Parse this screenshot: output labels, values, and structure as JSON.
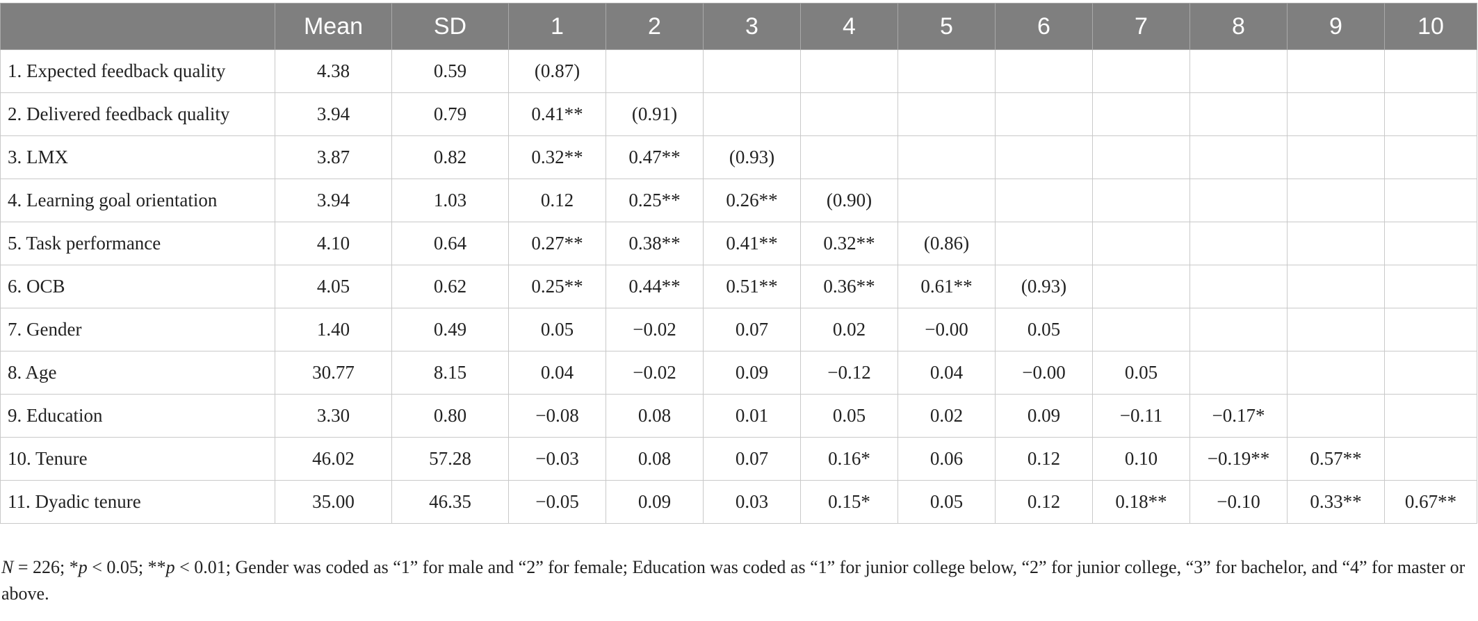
{
  "table": {
    "columns": [
      "",
      "Mean",
      "SD",
      "1",
      "2",
      "3",
      "4",
      "5",
      "6",
      "7",
      "8",
      "9",
      "10"
    ],
    "rows": [
      {
        "variable": "1. Expected feedback quality",
        "mean": "4.38",
        "sd": "0.59",
        "corr": [
          "(0.87)",
          "",
          "",
          "",
          "",
          "",
          "",
          "",
          "",
          ""
        ]
      },
      {
        "variable": "2. Delivered feedback quality",
        "mean": "3.94",
        "sd": "0.79",
        "corr": [
          "0.41**",
          "(0.91)",
          "",
          "",
          "",
          "",
          "",
          "",
          "",
          ""
        ]
      },
      {
        "variable": "3. LMX",
        "mean": "3.87",
        "sd": "0.82",
        "corr": [
          "0.32**",
          "0.47**",
          "(0.93)",
          "",
          "",
          "",
          "",
          "",
          "",
          ""
        ]
      },
      {
        "variable": "4. Learning goal orientation",
        "mean": "3.94",
        "sd": "1.03",
        "corr": [
          "0.12",
          "0.25**",
          "0.26**",
          "(0.90)",
          "",
          "",
          "",
          "",
          "",
          ""
        ]
      },
      {
        "variable": "5. Task performance",
        "mean": "4.10",
        "sd": "0.64",
        "corr": [
          "0.27**",
          "0.38**",
          "0.41**",
          "0.32**",
          "(0.86)",
          "",
          "",
          "",
          "",
          ""
        ]
      },
      {
        "variable": "6. OCB",
        "mean": "4.05",
        "sd": "0.62",
        "corr": [
          "0.25**",
          "0.44**",
          "0.51**",
          "0.36**",
          "0.61**",
          "(0.93)",
          "",
          "",
          "",
          ""
        ]
      },
      {
        "variable": "7. Gender",
        "mean": "1.40",
        "sd": "0.49",
        "corr": [
          "0.05",
          "−0.02",
          "0.07",
          "0.02",
          "−0.00",
          "0.05",
          "",
          "",
          "",
          ""
        ]
      },
      {
        "variable": "8. Age",
        "mean": "30.77",
        "sd": "8.15",
        "corr": [
          "0.04",
          "−0.02",
          "0.09",
          "−0.12",
          "0.04",
          "−0.00",
          "0.05",
          "",
          "",
          ""
        ]
      },
      {
        "variable": "9. Education",
        "mean": "3.30",
        "sd": "0.80",
        "corr": [
          "−0.08",
          "0.08",
          "0.01",
          "0.05",
          "0.02",
          "0.09",
          "−0.11",
          "−0.17*",
          "",
          ""
        ]
      },
      {
        "variable": "10. Tenure",
        "mean": "46.02",
        "sd": "57.28",
        "corr": [
          "−0.03",
          "0.08",
          "0.07",
          "0.16*",
          "0.06",
          "0.12",
          "0.10",
          "−0.19**",
          "0.57**",
          ""
        ]
      },
      {
        "variable": "11. Dyadic tenure",
        "mean": "35.00",
        "sd": "46.35",
        "corr": [
          "−0.05",
          "0.09",
          "0.03",
          "0.15*",
          "0.05",
          "0.12",
          "0.18**",
          "−0.10",
          "0.33**",
          "0.67**"
        ]
      }
    ]
  },
  "note": {
    "n_label": "N",
    "n_value": " = 226; *",
    "p1_label": "p",
    "p1_text": " < 0.05; **",
    "p2_label": "p",
    "rest": " < 0.01; Gender was coded as “1” for male and “2” for female; Education was coded as “1” for junior college below, “2” for junior college, “3” for bachelor, and “4” for master or above."
  }
}
